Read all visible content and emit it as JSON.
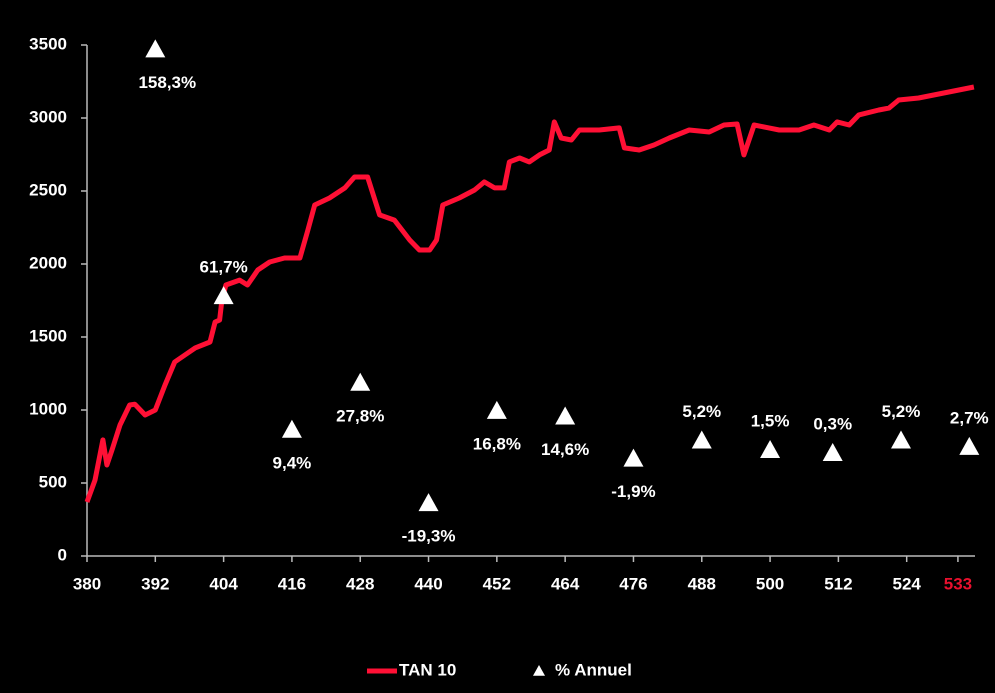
{
  "chart_data": {
    "type": "line",
    "xlim": [
      380,
      536
    ],
    "xticks": [
      380,
      392,
      404,
      416,
      428,
      440,
      452,
      464,
      476,
      488,
      500,
      512,
      524,
      {
        "value": 533,
        "label": "533",
        "color": "#e8102e"
      }
    ],
    "ylim": [
      0,
      3500
    ],
    "yticks": [
      0,
      500,
      1000,
      1500,
      2000,
      2500,
      3000,
      3500
    ],
    "y2lim": [
      -40,
      160
    ],
    "legend": "bottom",
    "series": [
      {
        "name": "TAN 10",
        "color": "#ff1035",
        "marker": "none",
        "x": [
          380,
          381.4,
          382.8,
          383.5,
          384.4,
          385.8,
          387.5,
          388.4,
          390.2,
          392,
          393.7,
          395.4,
          397.2,
          399,
          401.6,
          402.5,
          403.3,
          403.7,
          404.4,
          406.8,
          408.2,
          410,
          412.1,
          414.7,
          417.4,
          418.8,
          420,
          422.6,
          425.3,
          427,
          429.3,
          431.4,
          434,
          436.7,
          438.4,
          440.2,
          441.4,
          442.5,
          445.4,
          448.1,
          449.8,
          451.6,
          453.3,
          454.2,
          456,
          457.7,
          459.5,
          461.2,
          462.1,
          463.3,
          465.1,
          466.5,
          470,
          473.5,
          474.4,
          477,
          479.6,
          482.3,
          485.8,
          489.3,
          491.9,
          494.2,
          495.4,
          497.2,
          499.8,
          501.6,
          505.1,
          507.7,
          510.4,
          511.8,
          513.9,
          515.6,
          519.1,
          520.9,
          522.6,
          526.1,
          531.4,
          535.8
        ],
        "values": [
          370,
          520,
          795,
          623,
          726,
          897,
          1034,
          1040,
          966,
          1000,
          1171,
          1329,
          1377,
          1425,
          1466,
          1603,
          1616,
          1753,
          1856,
          1890,
          1856,
          1959,
          2014,
          2041,
          2041,
          2233,
          2404,
          2452,
          2521,
          2596,
          2596,
          2336,
          2301,
          2164,
          2096,
          2096,
          2164,
          2404,
          2452,
          2507,
          2562,
          2521,
          2521,
          2699,
          2726,
          2699,
          2747,
          2781,
          2973,
          2863,
          2849,
          2918,
          2918,
          2932,
          2795,
          2781,
          2815,
          2863,
          2918,
          2904,
          2952,
          2959,
          2747,
          2952,
          2932,
          2918,
          2918,
          2952,
          2918,
          2973,
          2952,
          3021,
          3055,
          3068,
          3123,
          3137,
          3178,
          3212
        ]
      },
      {
        "name": "% Annuel",
        "color": "#ffffff",
        "marker": "triangle",
        "axis": "y2",
        "x": [
          392,
          404,
          416,
          428,
          440,
          452,
          464,
          476,
          488,
          500,
          511,
          523,
          535
        ],
        "values": [
          158.3,
          61.7,
          9.4,
          27.8,
          -19.3,
          16.8,
          14.6,
          -1.9,
          5.2,
          1.5,
          0.3,
          5.2,
          2.7
        ],
        "value_labels": [
          "158,3%",
          "61,7%",
          "9,4%",
          "27,8%",
          "-19,3%",
          "16,8%",
          "14,6%",
          "-1,9%",
          "5,2%",
          "1,5%",
          "0,3%",
          "5,2%",
          "2,7%"
        ]
      }
    ]
  }
}
